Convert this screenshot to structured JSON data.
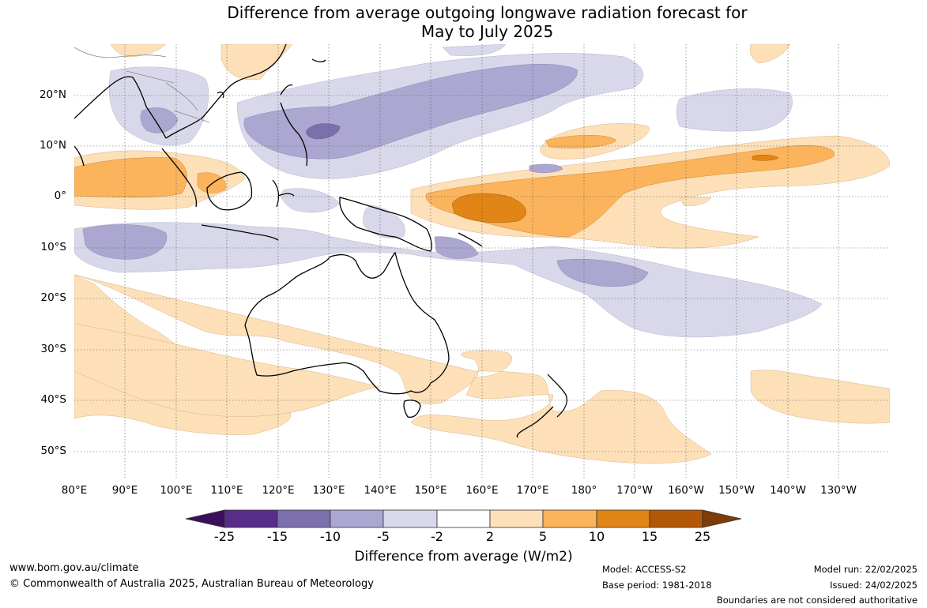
{
  "title": {
    "line1": "Difference from average outgoing longwave radiation forecast for",
    "line2": "May to July 2025"
  },
  "map": {
    "region": "Australia, Maritime Continent and western/central Pacific",
    "lat_labels": [
      "20°N",
      "10°N",
      "0°",
      "10°S",
      "20°S",
      "30°S",
      "40°S",
      "50°S"
    ],
    "lon_labels": [
      "80°E",
      "90°E",
      "100°E",
      "110°E",
      "120°E",
      "130°E",
      "140°E",
      "150°E",
      "160°E",
      "170°E",
      "180°",
      "170°W",
      "160°W",
      "150°W",
      "140°W",
      "130°W"
    ],
    "fill_colors": {
      "neg_2_5": "#d8d8ea",
      "neg_5_10": "#aca7d1",
      "neg_10_15": "#7b70ac",
      "pos_2_5": "#fde0b8",
      "pos_5_10": "#fbb45c",
      "pos_10_15": "#e08516",
      "coast": "#000000",
      "borders": "#8a8a8a"
    }
  },
  "colorbar": {
    "ticks": [
      "-25",
      "-15",
      "-10",
      "-5",
      "-2",
      "2",
      "5",
      "10",
      "15",
      "25"
    ],
    "colors": [
      "#3b0f5a",
      "#582d8a",
      "#7b70ac",
      "#aca7d1",
      "#d8d8ea",
      "#ffffff",
      "#fde0b8",
      "#fbb45c",
      "#e08516",
      "#b35806",
      "#7f3b08"
    ],
    "label": "Difference from average (W/m2)"
  },
  "footer": {
    "url": "www.bom.gov.au/climate",
    "copyright": "© Commonwealth of Australia 2025, Australian Bureau of Meteorology",
    "model": "Model: ACCESS-S2",
    "base_period": "Base period: 1981-2018",
    "model_run": "Model run: 22/02/2025",
    "issued": "Issued: 24/02/2025",
    "disclaimer": "Boundaries are not considered authoritative"
  }
}
